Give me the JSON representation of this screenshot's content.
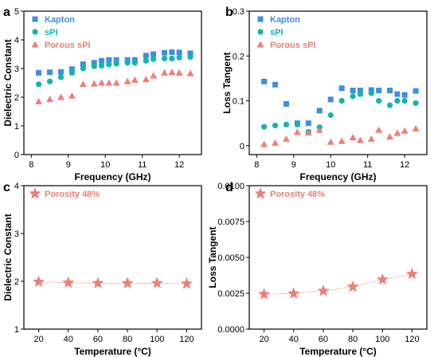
{
  "colors": {
    "kapton": "#3d8ee6",
    "spi": "#14b5a8",
    "porous": "#ee7f78",
    "axis": "#000000"
  },
  "chart_data": [
    {
      "panel_label": "a",
      "type": "scatter",
      "xlabel": "Frequency (GHz)",
      "ylabel": "Dielectric Constant",
      "xlim": [
        7.8,
        12.6
      ],
      "ylim": [
        0,
        5
      ],
      "xticks": [
        8,
        9,
        10,
        11,
        12
      ],
      "yticks": [
        0,
        1,
        2,
        3,
        4,
        5
      ],
      "legend_position": "top-left",
      "x": [
        8.2,
        8.5,
        8.8,
        9.1,
        9.4,
        9.7,
        9.9,
        10.1,
        10.3,
        10.6,
        10.8,
        11.1,
        11.3,
        11.6,
        11.8,
        12.0,
        12.3
      ],
      "series": [
        {
          "name": "Kapton",
          "marker": "square",
          "color_key": "kapton",
          "values": [
            2.85,
            2.87,
            2.88,
            2.98,
            3.15,
            3.2,
            3.27,
            3.3,
            3.3,
            3.3,
            3.3,
            3.45,
            3.5,
            3.55,
            3.57,
            3.56,
            3.53
          ]
        },
        {
          "name": "sPI",
          "marker": "circle",
          "color_key": "spi",
          "values": [
            2.45,
            2.55,
            2.7,
            2.85,
            3.0,
            3.08,
            3.1,
            3.14,
            3.17,
            3.2,
            3.2,
            3.27,
            3.33,
            3.35,
            3.35,
            3.38,
            3.4
          ]
        },
        {
          "name": "Porous sPI",
          "marker": "triangle",
          "color_key": "porous",
          "values": [
            1.85,
            1.93,
            2.0,
            2.05,
            2.45,
            2.47,
            2.5,
            2.5,
            2.5,
            2.55,
            2.6,
            2.62,
            2.75,
            2.85,
            2.87,
            2.85,
            2.83
          ]
        }
      ]
    },
    {
      "panel_label": "b",
      "type": "scatter",
      "xlabel": "Frequency (GHz)",
      "ylabel": "Loss Tangent",
      "xlim": [
        7.8,
        12.6
      ],
      "ylim": [
        -0.02,
        0.3
      ],
      "xticks": [
        8,
        9,
        10,
        11,
        12
      ],
      "yticks": [
        0.0,
        0.1,
        0.2,
        0.3
      ],
      "legend_position": "top-left",
      "x": [
        8.2,
        8.5,
        8.8,
        9.1,
        9.4,
        9.7,
        10.0,
        10.3,
        10.6,
        10.8,
        11.1,
        11.3,
        11.6,
        11.8,
        12.0,
        12.3
      ],
      "series": [
        {
          "name": "Kapton",
          "marker": "square",
          "color_key": "kapton",
          "values": [
            0.143,
            0.136,
            0.093,
            0.05,
            0.05,
            0.078,
            0.103,
            0.128,
            0.123,
            0.123,
            0.124,
            0.123,
            0.123,
            0.115,
            0.113,
            0.122
          ]
        },
        {
          "name": "sPI",
          "marker": "circle",
          "color_key": "spi",
          "values": [
            0.042,
            0.045,
            0.047,
            0.047,
            0.031,
            0.041,
            0.068,
            0.1,
            0.11,
            0.115,
            0.117,
            0.1,
            0.09,
            0.1,
            0.1,
            0.095
          ]
        },
        {
          "name": "Porous sPI",
          "marker": "triangle",
          "color_key": "porous",
          "values": [
            0.003,
            0.006,
            0.015,
            0.03,
            0.029,
            0.035,
            0.008,
            0.01,
            0.018,
            0.012,
            0.015,
            0.035,
            0.02,
            0.028,
            0.033,
            0.038
          ]
        }
      ]
    },
    {
      "panel_label": "c",
      "type": "line",
      "xlabel": "Temperature (°C)",
      "ylabel": "Dielectric Constant",
      "xlim": [
        10,
        130
      ],
      "ylim": [
        1,
        4
      ],
      "xticks": [
        20,
        40,
        60,
        80,
        100,
        120
      ],
      "yticks": [
        1,
        2,
        3,
        4
      ],
      "legend_position": "top-left",
      "x": [
        20,
        40,
        60,
        80,
        100,
        120
      ],
      "series": [
        {
          "name": "Porosity 48%",
          "marker": "star",
          "color_key": "porous",
          "line": "dotted",
          "values": [
            1.99,
            1.97,
            1.96,
            1.96,
            1.96,
            1.95
          ]
        }
      ]
    },
    {
      "panel_label": "d",
      "type": "line",
      "xlabel": "Temperature (°C)",
      "ylabel": "Loss Tangent",
      "xlim": [
        10,
        130
      ],
      "ylim": [
        0,
        0.01
      ],
      "xticks": [
        20,
        40,
        60,
        80,
        100,
        120
      ],
      "yticks": [
        0.0,
        0.0025,
        0.005,
        0.0075,
        0.01
      ],
      "ytick_labels": [
        "0.0000",
        "0.0025",
        "0.0050",
        "0.0075",
        "0.0100"
      ],
      "legend_position": "top-left",
      "x": [
        20,
        40,
        60,
        80,
        100,
        120
      ],
      "series": [
        {
          "name": "Porosity 48%",
          "marker": "star",
          "color_key": "porous",
          "line": "dotted",
          "values": [
            0.00243,
            0.00248,
            0.00266,
            0.00295,
            0.00345,
            0.00385
          ]
        }
      ]
    }
  ]
}
